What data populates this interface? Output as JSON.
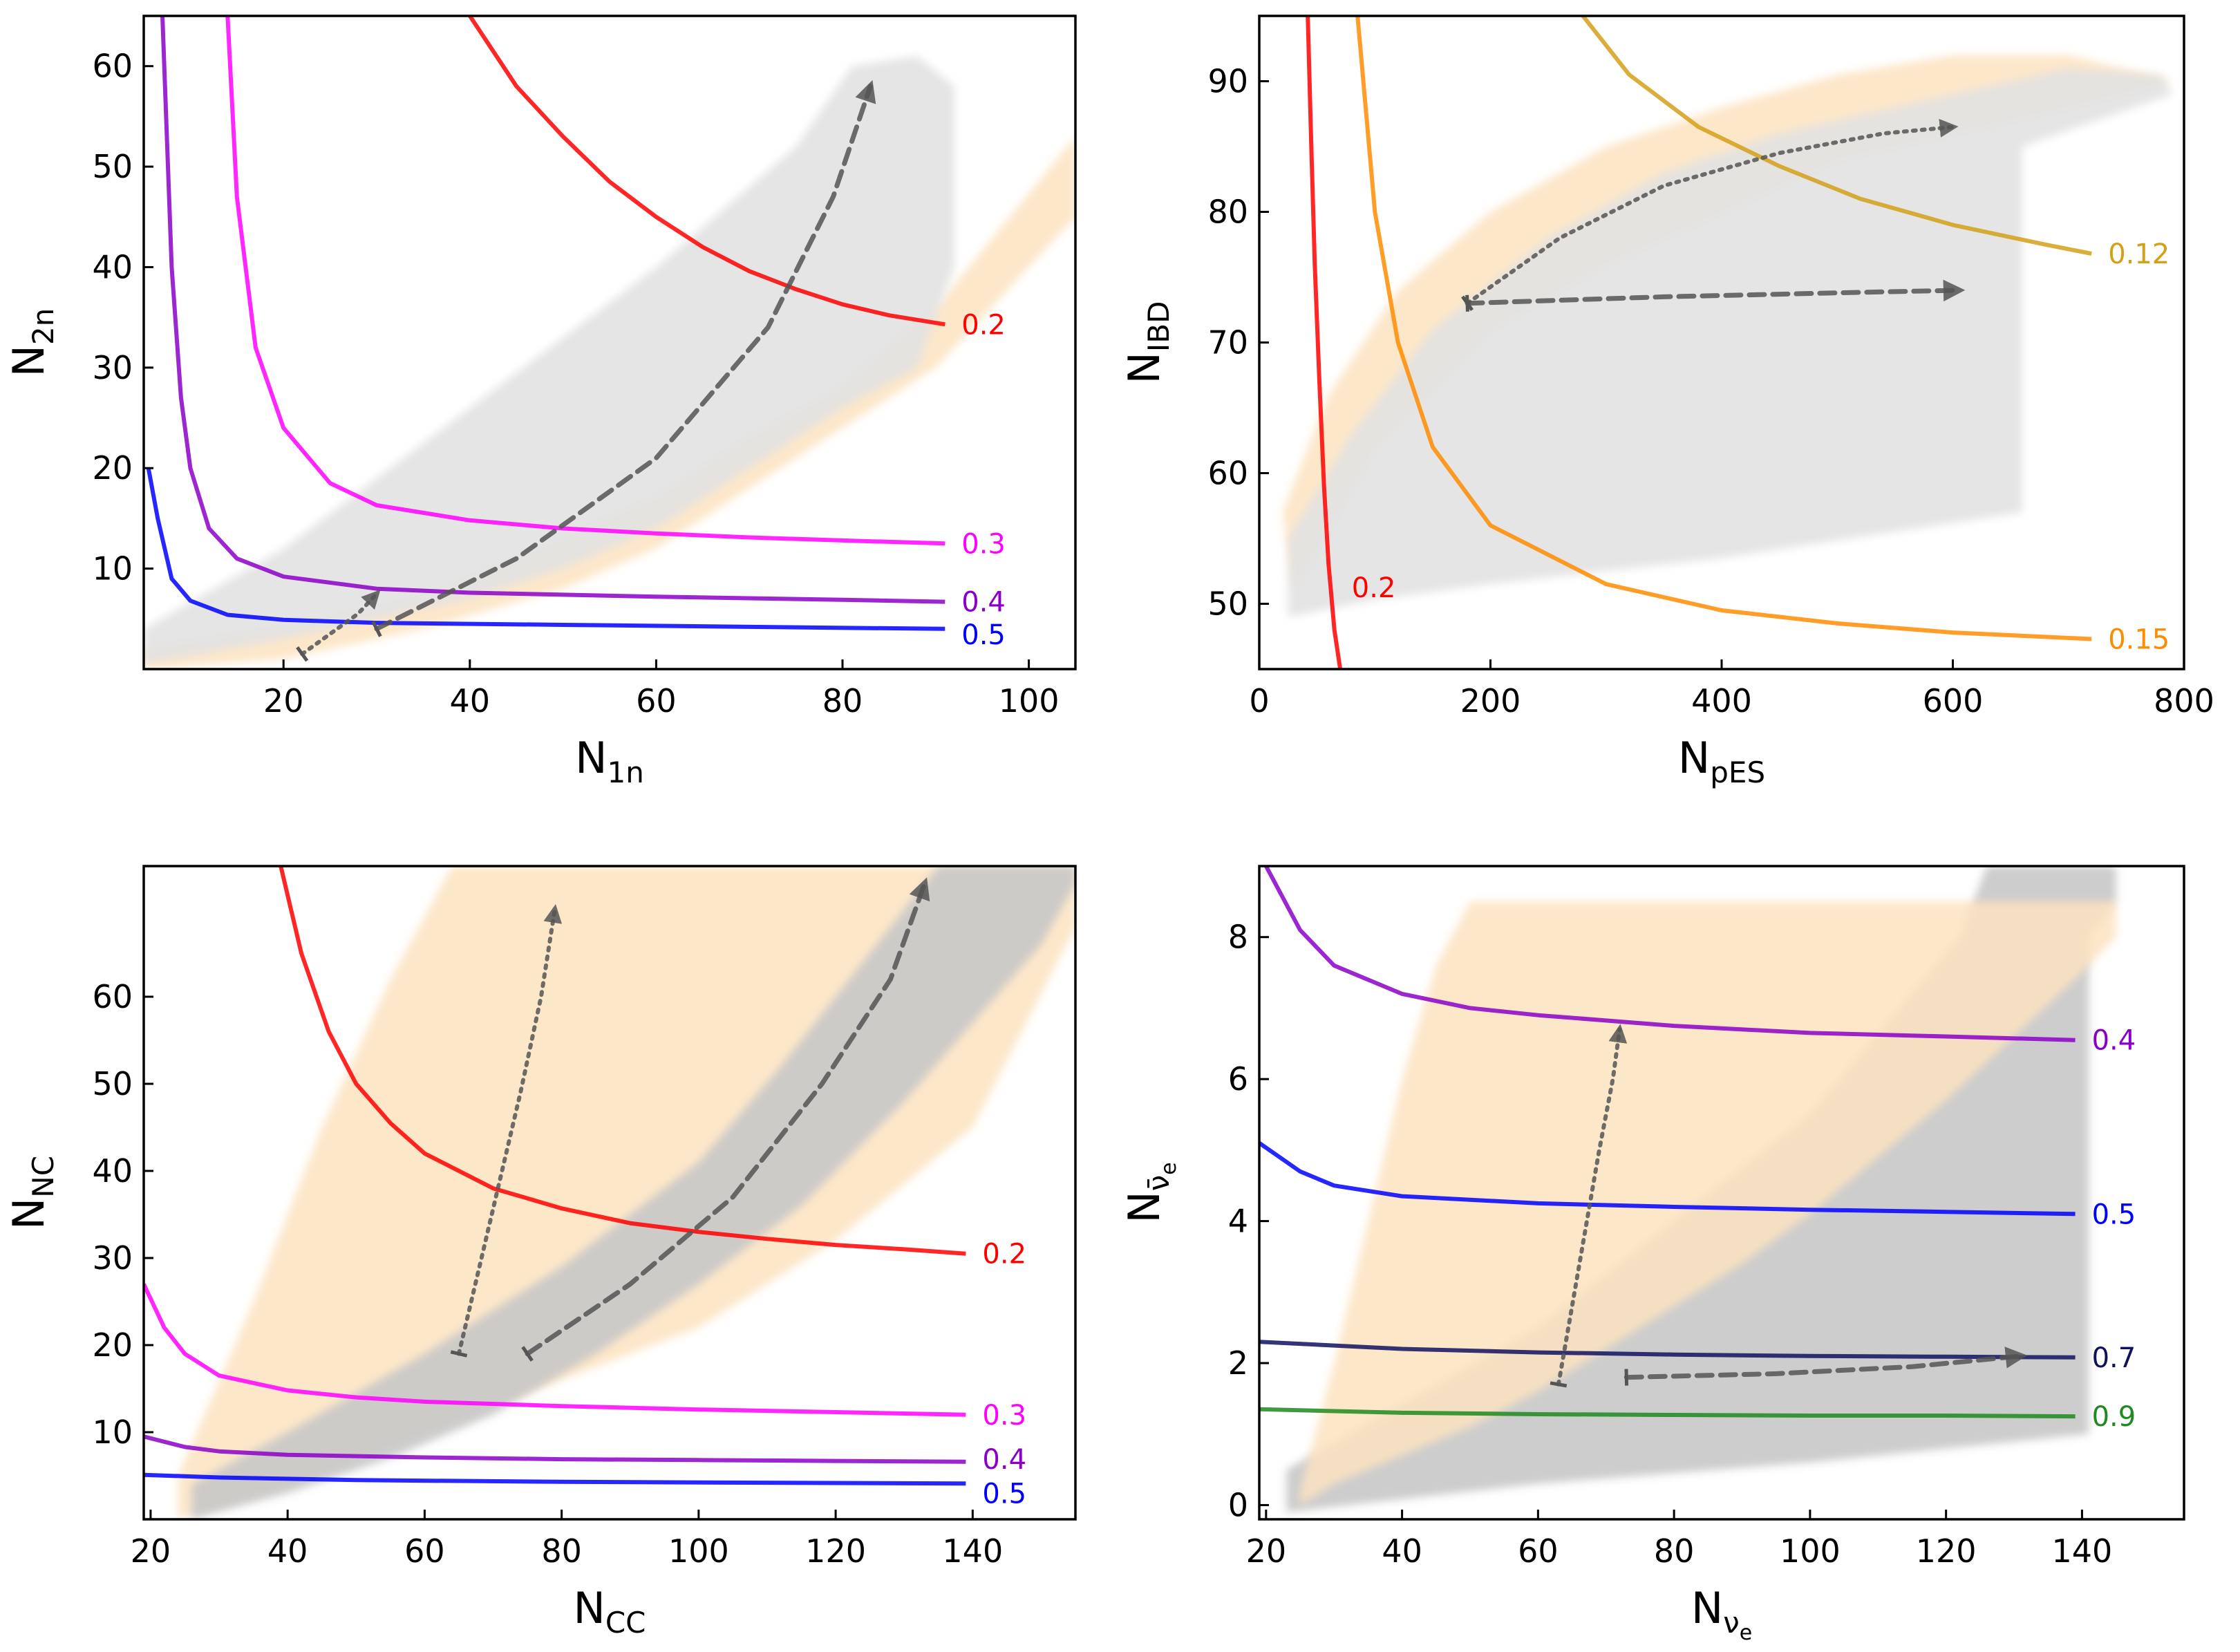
{
  "colors": {
    "0.2": "#ff0000",
    "0.3": "#ff00ff",
    "0.4": "#8b00c8",
    "0.5": "#0000ff",
    "0.7": "#101060",
    "0.9": "#1f8a1f",
    "0.12": "#d4a017",
    "0.15": "#ff8c00",
    "band_gray": "#e2e2e2",
    "band_peach": "#fde3c0",
    "band_dark": "#c8c8c8",
    "arrow": "#555555"
  },
  "chart_data": [
    {
      "type": "line",
      "xlabel": "N",
      "xsub": "1n",
      "ylabel": "N",
      "ysub": "2n",
      "xlim": [
        5,
        105
      ],
      "ylim": [
        0,
        65
      ],
      "xticks": [
        "20",
        "40",
        "60",
        "80",
        "100"
      ],
      "yticks": [
        "10",
        "20",
        "30",
        "40",
        "50",
        "60"
      ],
      "series": [
        {
          "name": "0.2",
          "x": [
            40,
            45,
            50,
            55,
            60,
            65,
            70,
            75,
            80,
            85,
            91
          ],
          "y": [
            65,
            58,
            53,
            48.5,
            45,
            42,
            39.6,
            37.8,
            36.3,
            35.2,
            34.3
          ]
        },
        {
          "name": "0.3",
          "x": [
            14,
            15,
            17,
            20,
            25,
            30,
            40,
            50,
            60,
            70,
            80,
            91
          ],
          "y": [
            65,
            47,
            32,
            24,
            18.5,
            16.3,
            14.8,
            14,
            13.5,
            13.1,
            12.8,
            12.5
          ]
        },
        {
          "name": "0.4",
          "x": [
            7,
            8,
            9,
            10,
            12,
            15,
            20,
            30,
            40,
            60,
            80,
            91
          ],
          "y": [
            65,
            40,
            27,
            20,
            14,
            11,
            9.2,
            8,
            7.6,
            7.2,
            6.9,
            6.7
          ]
        },
        {
          "name": "0.5",
          "x": [
            5.5,
            6.5,
            8,
            10,
            14,
            20,
            30,
            50,
            70,
            91
          ],
          "y": [
            20,
            15,
            9,
            6.8,
            5.4,
            4.9,
            4.6,
            4.4,
            4.2,
            4
          ]
        }
      ],
      "bands": [
        {
          "color": "band_peach",
          "x": [
            5,
            20,
            35,
            50,
            60,
            70,
            80,
            90,
            105,
            105,
            90,
            80,
            70,
            60,
            50,
            35,
            20,
            5
          ],
          "y": [
            2,
            4,
            7,
            13,
            17,
            23,
            28,
            36,
            53,
            45,
            30,
            24,
            18,
            12,
            8,
            4,
            1,
            0
          ]
        },
        {
          "color": "band_gray",
          "x": [
            5,
            20,
            40,
            60,
            75,
            81,
            88,
            92,
            92,
            88,
            80,
            70,
            60,
            50,
            40,
            30,
            20,
            5
          ],
          "y": [
            4,
            12,
            26,
            40,
            52,
            60,
            61,
            58,
            40,
            30,
            26,
            20,
            14,
            10,
            7,
            5,
            3,
            0.5
          ]
        }
      ],
      "arrows": [
        {
          "style": "dotted",
          "x": [
            22,
            25,
            28,
            30
          ],
          "y": [
            1.5,
            3.5,
            5.5,
            7.5
          ]
        },
        {
          "style": "dashed",
          "x": [
            30,
            45,
            60,
            72,
            79,
            83
          ],
          "y": [
            4,
            11,
            21,
            34,
            47,
            58
          ]
        }
      ]
    },
    {
      "type": "line",
      "xlabel": "N",
      "xsub": "pES",
      "ylabel": "N",
      "ysub": "IBD",
      "xlim": [
        0,
        800
      ],
      "ylim": [
        45,
        95
      ],
      "xticks": [
        "0",
        "200",
        "400",
        "600",
        "800"
      ],
      "yticks": [
        "50",
        "60",
        "70",
        "80",
        "90"
      ],
      "series": [
        {
          "name": "0.2",
          "x": [
            42,
            45,
            48,
            52,
            56,
            60,
            65,
            70
          ],
          "y": [
            95,
            85,
            76,
            67,
            59,
            53,
            48,
            45
          ]
        },
        {
          "name": "0.15",
          "x": [
            85,
            100,
            120,
            150,
            200,
            300,
            400,
            500,
            600,
            720
          ],
          "y": [
            95,
            80,
            70,
            62,
            56,
            51.5,
            49.5,
            48.5,
            47.8,
            47.3
          ]
        },
        {
          "name": "0.12",
          "x": [
            280,
            320,
            380,
            450,
            520,
            600,
            680,
            720
          ],
          "y": [
            95,
            90.5,
            86.5,
            83.5,
            81,
            79,
            77.5,
            76.8
          ]
        }
      ],
      "bands": [
        {
          "color": "band_peach",
          "x": [
            20,
            60,
            120,
            200,
            300,
            400,
            500,
            600,
            700,
            790,
            700,
            600,
            500,
            400,
            300,
            200,
            100,
            30
          ],
          "y": [
            57,
            66,
            74,
            80,
            85,
            88,
            90.5,
            92,
            92,
            90,
            88,
            86,
            84,
            80,
            76,
            71,
            62,
            51
          ]
        },
        {
          "color": "band_gray",
          "x": [
            25,
            80,
            150,
            250,
            350,
            450,
            550,
            650,
            700,
            780,
            790,
            660,
            660,
            400,
            200,
            100,
            25
          ],
          "y": [
            55,
            63,
            71,
            78,
            83,
            86,
            88,
            90,
            91,
            90.5,
            89,
            85,
            57,
            53.5,
            51.5,
            50.3,
            49
          ]
        }
      ],
      "arrows": [
        {
          "style": "dotted",
          "x": [
            180,
            260,
            350,
            450,
            540,
            600
          ],
          "y": [
            73,
            78,
            82,
            84.5,
            86,
            86.5
          ]
        },
        {
          "style": "dashed",
          "x": [
            180,
            350,
            500,
            605
          ],
          "y": [
            73,
            73.5,
            73.8,
            74
          ]
        }
      ]
    },
    {
      "type": "line",
      "xlabel": "N",
      "xsub": "CC",
      "ylabel": "N",
      "ysub": "NC",
      "xlim": [
        19,
        155
      ],
      "ylim": [
        0,
        75
      ],
      "xticks": [
        "20",
        "40",
        "60",
        "80",
        "100",
        "120",
        "140"
      ],
      "yticks": [
        "10",
        "20",
        "30",
        "40",
        "50",
        "60"
      ],
      "series": [
        {
          "name": "0.2",
          "x": [
            39,
            42,
            46,
            50,
            55,
            60,
            70,
            80,
            90,
            100,
            110,
            120,
            130,
            139
          ],
          "y": [
            75,
            65,
            56,
            50,
            45.5,
            42,
            38,
            35.7,
            34,
            33,
            32.2,
            31.5,
            31,
            30.5
          ]
        },
        {
          "name": "0.3",
          "x": [
            19,
            22,
            25,
            30,
            40,
            50,
            60,
            80,
            100,
            120,
            139
          ],
          "y": [
            27,
            22,
            19,
            16.5,
            14.8,
            14,
            13.5,
            13,
            12.6,
            12.3,
            12
          ]
        },
        {
          "name": "0.4",
          "x": [
            19,
            25,
            30,
            40,
            60,
            80,
            100,
            120,
            139
          ],
          "y": [
            9.5,
            8.3,
            7.8,
            7.4,
            7.1,
            6.9,
            6.8,
            6.7,
            6.6
          ]
        },
        {
          "name": "0.5",
          "x": [
            19,
            30,
            50,
            80,
            110,
            139
          ],
          "y": [
            5.1,
            4.8,
            4.5,
            4.3,
            4.2,
            4.1
          ]
        }
      ],
      "bands": [
        {
          "color": "band_peach",
          "x": [
            24,
            35,
            45,
            55,
            64,
            120,
            155,
            155,
            140,
            120,
            100,
            80,
            60,
            40,
            24
          ],
          "y": [
            5,
            25,
            45,
            62,
            75,
            75,
            75,
            68,
            45,
            32,
            22,
            16,
            10,
            4,
            0
          ]
        },
        {
          "color": "band_dark",
          "x": [
            26,
            40,
            60,
            80,
            100,
            112,
            125,
            135,
            155,
            155,
            150,
            140,
            130,
            115,
            100,
            85,
            70,
            55,
            40,
            26
          ],
          "y": [
            4,
            10,
            19,
            29,
            41,
            52,
            65,
            75,
            75,
            73,
            66,
            57,
            48,
            36,
            27,
            19,
            12,
            7,
            3,
            0
          ]
        }
      ],
      "arrows": [
        {
          "style": "dotted",
          "x": [
            65,
            68,
            71,
            74,
            77,
            79
          ],
          "y": [
            19,
            29,
            39,
            49,
            60,
            70
          ]
        },
        {
          "style": "dashed",
          "x": [
            75,
            90,
            105,
            118,
            128,
            133
          ],
          "y": [
            19,
            27,
            37,
            50,
            62,
            73
          ]
        }
      ]
    },
    {
      "type": "line",
      "xlabel": "N",
      "xsub": "ν",
      "xsub2": "e",
      "ylabel": "N",
      "ysub": "ν̄",
      "ysub2": "e",
      "xlim": [
        19,
        155
      ],
      "ylim": [
        -0.2,
        9
      ],
      "xticks": [
        "20",
        "40",
        "60",
        "80",
        "100",
        "120",
        "140"
      ],
      "yticks": [
        "0",
        "2",
        "4",
        "6",
        "8"
      ],
      "series": [
        {
          "name": "0.4",
          "x": [
            20,
            25,
            30,
            40,
            50,
            60,
            80,
            100,
            120,
            139
          ],
          "y": [
            9,
            8.1,
            7.6,
            7.2,
            7,
            6.9,
            6.75,
            6.65,
            6.6,
            6.55
          ]
        },
        {
          "name": "0.5",
          "x": [
            19,
            25,
            30,
            40,
            60,
            80,
            100,
            120,
            139
          ],
          "y": [
            5.1,
            4.7,
            4.5,
            4.35,
            4.25,
            4.2,
            4.16,
            4.13,
            4.1
          ]
        },
        {
          "name": "0.7",
          "x": [
            19,
            40,
            60,
            80,
            100,
            120,
            139
          ],
          "y": [
            2.3,
            2.2,
            2.15,
            2.12,
            2.1,
            2.09,
            2.08
          ]
        },
        {
          "name": "0.9",
          "x": [
            19,
            40,
            60,
            80,
            100,
            120,
            139
          ],
          "y": [
            1.35,
            1.3,
            1.28,
            1.27,
            1.26,
            1.26,
            1.25
          ]
        }
      ],
      "bands": [
        {
          "color": "band_dark",
          "x": [
            23,
            60,
            100,
            122,
            126,
            145,
            145,
            141,
            141,
            100,
            60,
            23
          ],
          "y": [
            0.5,
            2.5,
            5.5,
            8,
            9,
            9,
            8.5,
            8,
            1,
            0.6,
            0.3,
            -0.1
          ]
        },
        {
          "color": "band_peach",
          "x": [
            25,
            30,
            35,
            40,
            45,
            50,
            128,
            145,
            145,
            140,
            130,
            120,
            110,
            100,
            90,
            80,
            70,
            60,
            50,
            40,
            30,
            25
          ],
          "y": [
            0.2,
            2,
            4,
            6,
            7.6,
            8.5,
            8.5,
            8.5,
            8,
            7.5,
            6.6,
            5.7,
            4.9,
            4.1,
            3.4,
            2.8,
            2.2,
            1.6,
            1.1,
            0.7,
            0.3,
            0
          ]
        }
      ],
      "arrows": [
        {
          "style": "dotted",
          "x": [
            63,
            65,
            67,
            69,
            71,
            72
          ],
          "y": [
            1.7,
            2.8,
            3.9,
            5,
            6,
            6.7
          ]
        },
        {
          "style": "dashed",
          "x": [
            73,
            95,
            115,
            131
          ],
          "y": [
            1.8,
            1.85,
            1.95,
            2.1
          ]
        }
      ]
    }
  ]
}
